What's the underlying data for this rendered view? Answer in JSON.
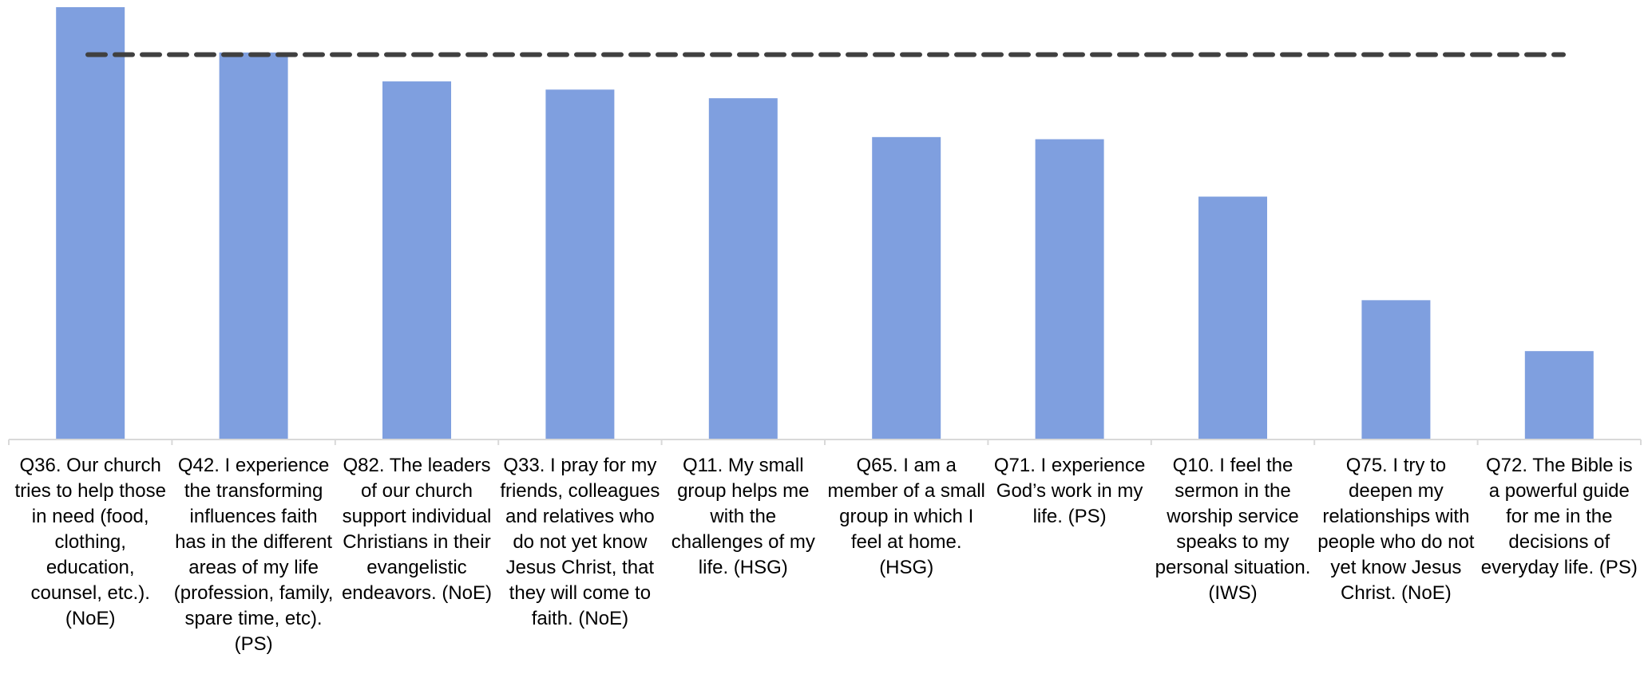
{
  "chart_data": {
    "type": "bar",
    "categories": [
      "Q36. Our church tries to help those in need (food, clothing, education, counsel, etc.). (NoE)",
      "Q42. I experience the transforming influences faith has in the different areas of my life (profession, family, spare time, etc). (PS)",
      "Q82. The leaders of our church support individual Christians in their evangelistic endeavors. (NoE)",
      "Q33. I pray for my friends, colleagues and relatives who do not yet know Jesus Christ, that they will come to faith. (NoE)",
      "Q11. My small group helps me with the challenges of my life. (HSG)",
      "Q65. I am a member of a small group in which I feel at home. (HSG)",
      "Q71. I experience God’s work in my life. (PS)",
      "Q10. I feel the sermon in the worship service speaks to my personal situation. (IWS)",
      "Q75. I try to deepen my relationships with people who do not yet know Jesus Christ. (NoE)",
      "Q72. The Bible is a powerful guide for me in the decisions of everyday life. (PS)"
    ],
    "values": [
      100,
      89.5,
      82.8,
      80.9,
      78.9,
      69.9,
      69.4,
      56.1,
      32.1,
      20.3
    ],
    "color": "#7f9fdf",
    "ylim": [
      0,
      100
    ],
    "reference_line": {
      "value": 89,
      "color": "#404040"
    }
  }
}
